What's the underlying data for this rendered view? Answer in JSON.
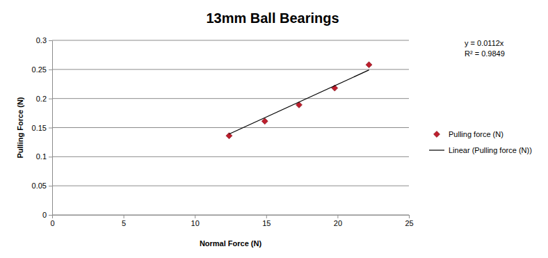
{
  "chart_data": {
    "type": "scatter",
    "title": "13mm Ball Bearings",
    "x_label": "Normal Force (N)",
    "y_label": "Pulling Force (N)",
    "annotations": [
      "y = 0.0112x",
      "R² = 0.9849"
    ],
    "series": [
      {
        "name": "Pulling force (N)",
        "type": "scatter",
        "marker": "diamond",
        "color": "#be1e2d",
        "x": [
          12.4,
          14.9,
          17.3,
          19.8,
          22.2
        ],
        "values": [
          0.136,
          0.161,
          0.189,
          0.218,
          0.258
        ]
      },
      {
        "name": "Linear (Pulling force (N))",
        "type": "line",
        "line_style": "solid",
        "color": "#000000",
        "x": [
          12.4,
          22.2
        ],
        "values": [
          0.139,
          0.249
        ]
      }
    ],
    "xlim": [
      0,
      25
    ],
    "xticks": [
      0,
      5,
      10,
      15,
      20,
      25
    ],
    "ylim": [
      0,
      0.3
    ],
    "yticks": [
      0,
      0.05,
      0.1,
      0.15,
      0.2,
      0.25,
      0.3
    ],
    "grid": true,
    "legend": "right"
  }
}
